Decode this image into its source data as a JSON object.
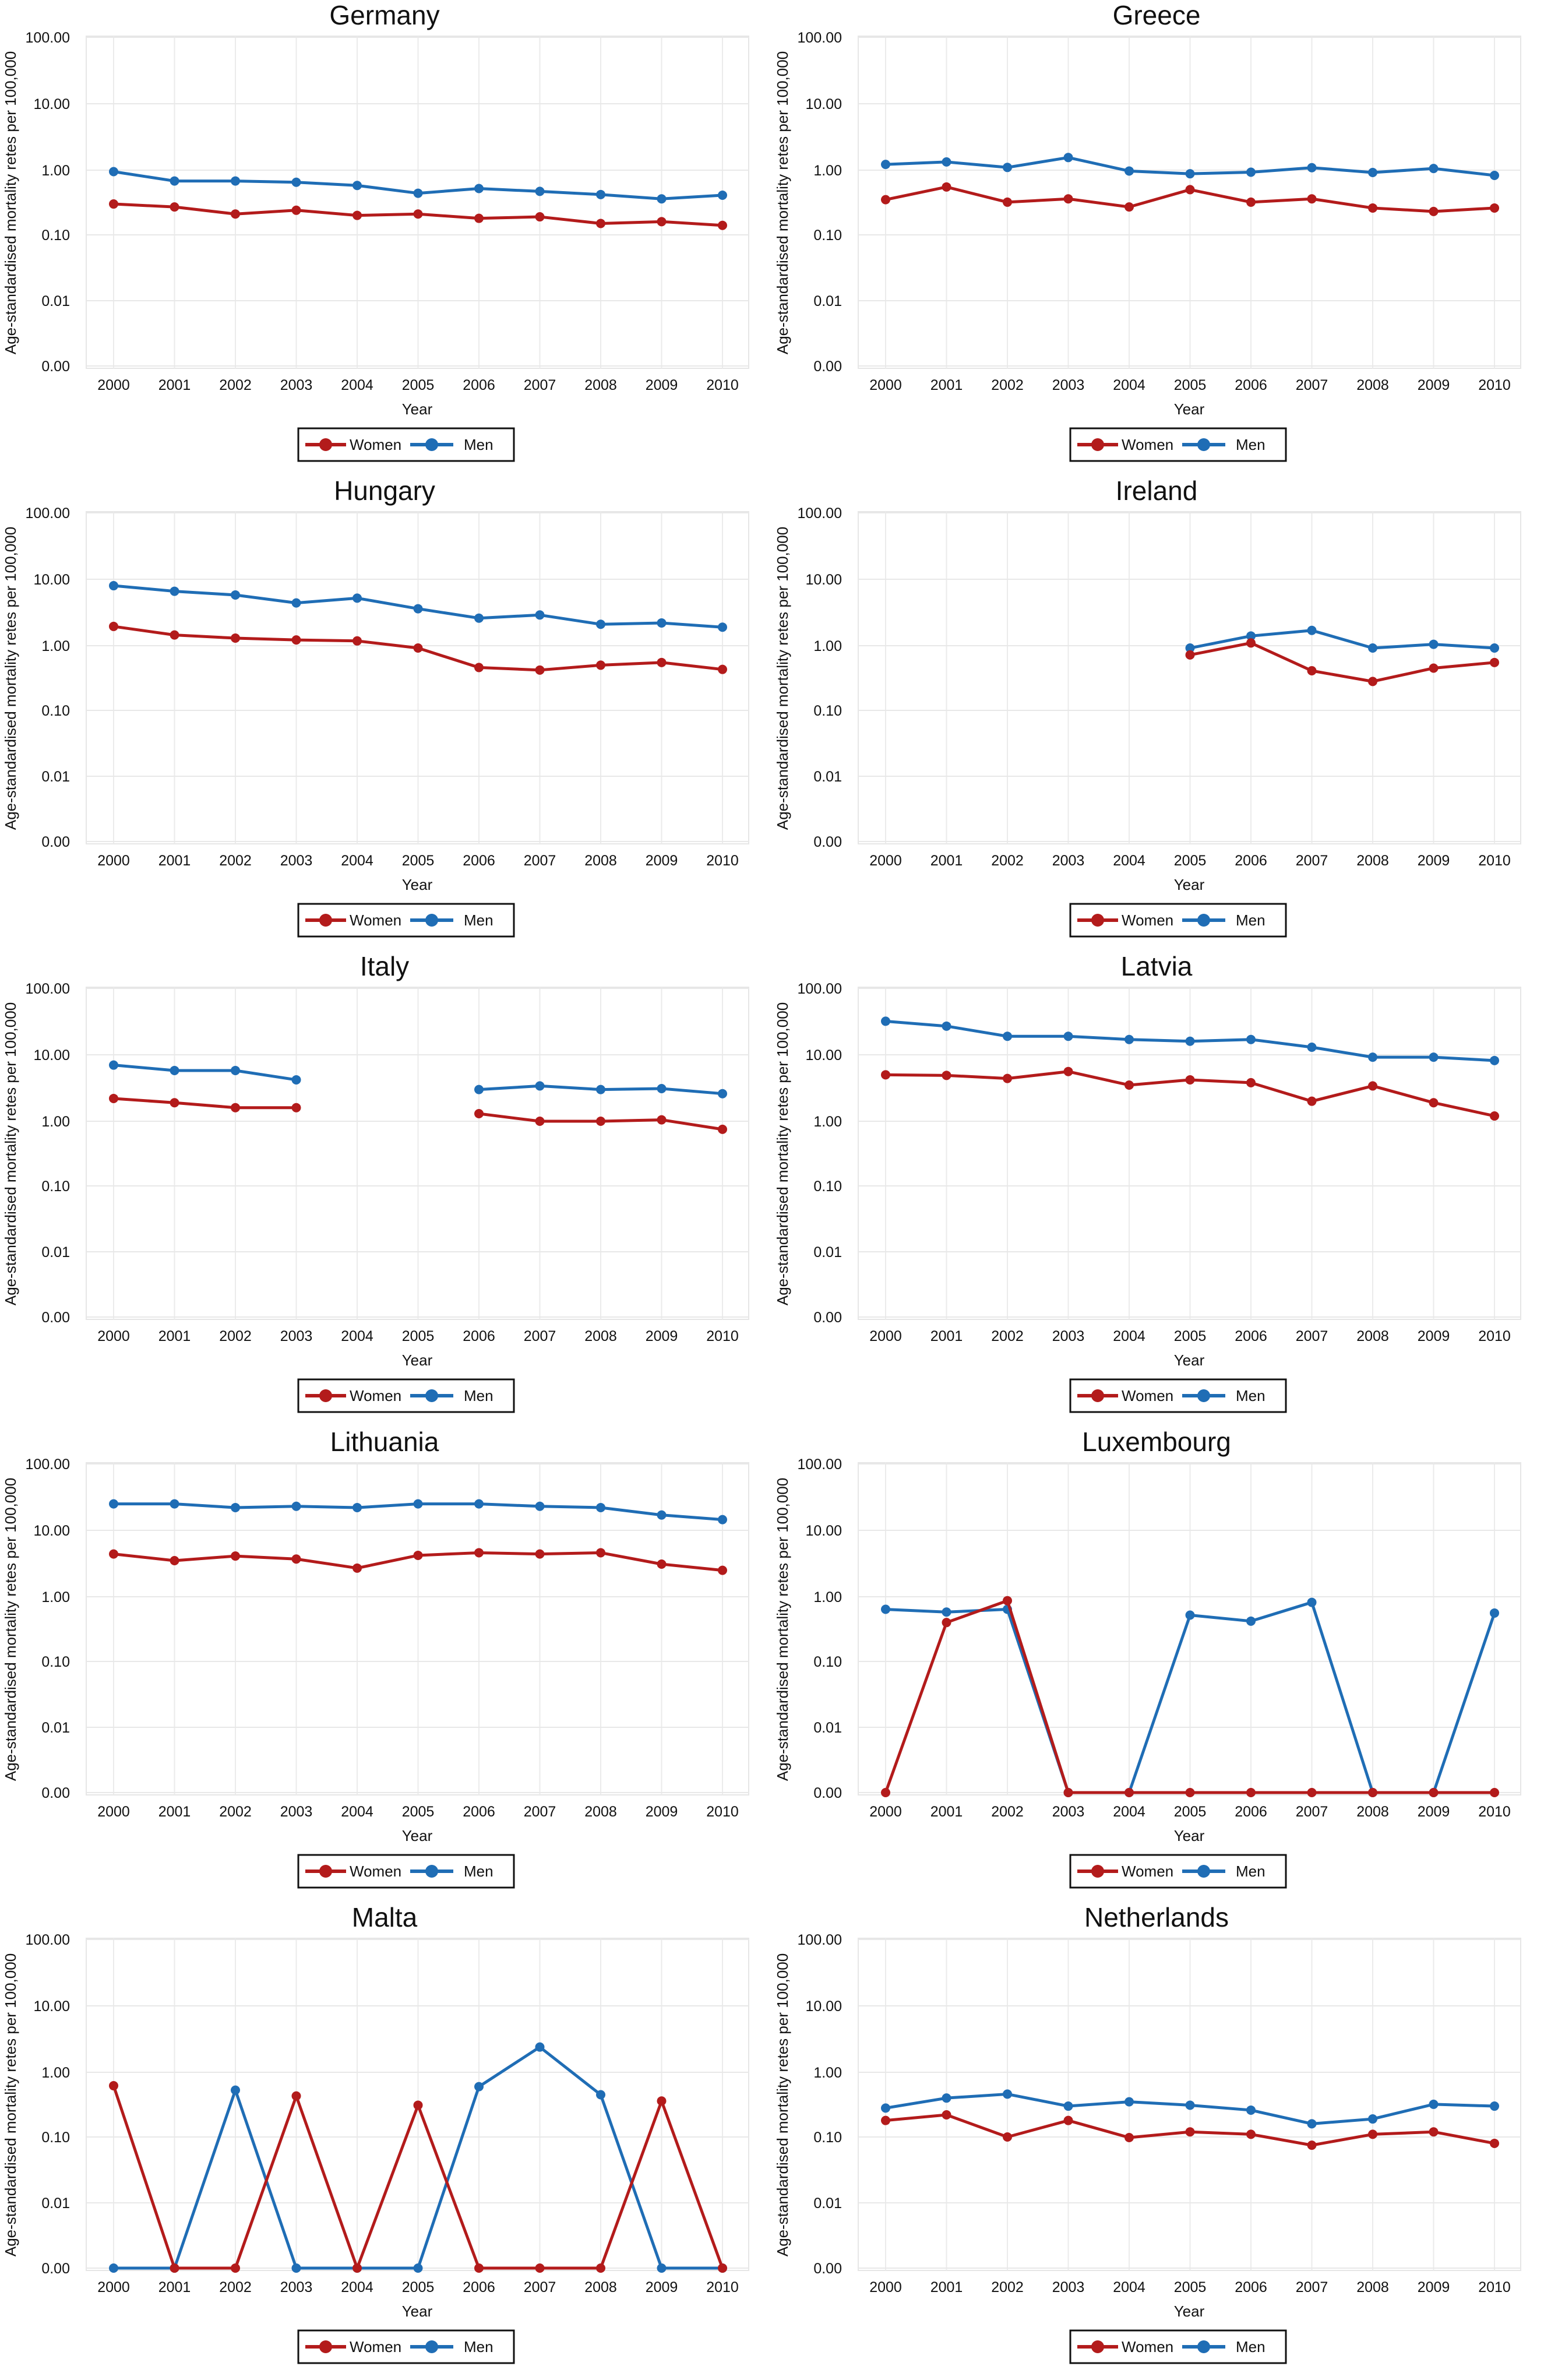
{
  "figure": {
    "ylabel": "Age-standardised mortality retes per 100,000",
    "xlabel": "Year",
    "legend": [
      {
        "name": "Women",
        "color": "#b31b1b"
      },
      {
        "name": "Men",
        "color": "#1f6db5"
      }
    ]
  },
  "chart_data": [
    {
      "type": "line",
      "title": "Germany",
      "xlabel": "Year",
      "ylabel": "Age-standardised mortality retes per 100,000",
      "y_scale": "log",
      "y_ticks": [
        "0.00",
        "0.01",
        "0.10",
        "1.00",
        "10.00",
        "100.00"
      ],
      "x": [
        "2000",
        "2001",
        "2002",
        "2003",
        "2004",
        "2005",
        "2006",
        "2007",
        "2008",
        "2009",
        "2010"
      ],
      "legend_position": "bottom",
      "grid": true,
      "series": [
        {
          "name": "Women",
          "color": "#b31b1b",
          "values": [
            0.3,
            0.27,
            0.21,
            0.24,
            0.2,
            0.21,
            0.18,
            0.19,
            0.15,
            0.16,
            0.14
          ]
        },
        {
          "name": "Men",
          "color": "#1f6db5",
          "values": [
            0.95,
            0.68,
            0.68,
            0.65,
            0.58,
            0.44,
            0.52,
            0.47,
            0.42,
            0.36,
            0.41
          ]
        }
      ]
    },
    {
      "type": "line",
      "title": "Greece",
      "xlabel": "Year",
      "ylabel": "Age-standardised mortality retes per 100,000",
      "y_scale": "log",
      "y_ticks": [
        "0.00",
        "0.01",
        "0.10",
        "1.00",
        "10.00",
        "100.00"
      ],
      "x": [
        "2000",
        "2001",
        "2002",
        "2003",
        "2004",
        "2005",
        "2006",
        "2007",
        "2008",
        "2009",
        "2010"
      ],
      "legend_position": "bottom",
      "grid": true,
      "series": [
        {
          "name": "Women",
          "color": "#b31b1b",
          "values": [
            0.35,
            0.55,
            0.32,
            0.36,
            0.27,
            0.5,
            0.32,
            0.36,
            0.26,
            0.23,
            0.26
          ]
        },
        {
          "name": "Men",
          "color": "#1f6db5",
          "values": [
            1.22,
            1.33,
            1.1,
            1.55,
            0.97,
            0.88,
            0.93,
            1.09,
            0.92,
            1.06,
            0.83
          ]
        }
      ]
    },
    {
      "type": "line",
      "title": "Hungary",
      "xlabel": "Year",
      "ylabel": "Age-standardised mortality retes per 100,000",
      "y_scale": "log",
      "y_ticks": [
        "0.00",
        "0.01",
        "0.10",
        "1.00",
        "10.00",
        "100.00"
      ],
      "x": [
        "2000",
        "2001",
        "2002",
        "2003",
        "2004",
        "2005",
        "2006",
        "2007",
        "2008",
        "2009",
        "2010"
      ],
      "legend_position": "bottom",
      "grid": true,
      "series": [
        {
          "name": "Women",
          "color": "#b31b1b",
          "values": [
            1.95,
            1.45,
            1.3,
            1.22,
            1.18,
            0.92,
            0.46,
            0.42,
            0.5,
            0.55,
            0.43
          ]
        },
        {
          "name": "Men",
          "color": "#1f6db5",
          "values": [
            8.0,
            6.6,
            5.8,
            4.4,
            5.2,
            3.6,
            2.6,
            2.9,
            2.1,
            2.2,
            1.9
          ]
        }
      ]
    },
    {
      "type": "line",
      "title": "Ireland",
      "xlabel": "Year",
      "ylabel": "Age-standardised mortality retes per 100,000",
      "y_scale": "log",
      "y_ticks": [
        "0.00",
        "0.01",
        "0.10",
        "1.00",
        "10.00",
        "100.00"
      ],
      "x": [
        "2000",
        "2001",
        "2002",
        "2003",
        "2004",
        "2005",
        "2006",
        "2007",
        "2008",
        "2009",
        "2010"
      ],
      "legend_position": "bottom",
      "grid": true,
      "series": [
        {
          "name": "Women",
          "color": "#b31b1b",
          "values": [
            null,
            null,
            null,
            null,
            null,
            0.72,
            1.1,
            0.41,
            0.28,
            0.45,
            0.55
          ]
        },
        {
          "name": "Men",
          "color": "#1f6db5",
          "values": [
            null,
            null,
            null,
            null,
            null,
            0.92,
            1.4,
            1.7,
            0.92,
            1.05,
            0.92
          ]
        }
      ]
    },
    {
      "type": "line",
      "title": "Italy",
      "xlabel": "Year",
      "ylabel": "Age-standardised mortality retes per 100,000",
      "y_scale": "log",
      "y_ticks": [
        "0.00",
        "0.01",
        "0.10",
        "1.00",
        "10.00",
        "100.00"
      ],
      "x": [
        "2000",
        "2001",
        "2002",
        "2003",
        "2004",
        "2005",
        "2006",
        "2007",
        "2008",
        "2009",
        "2010"
      ],
      "legend_position": "bottom",
      "grid": true,
      "series": [
        {
          "name": "Women",
          "color": "#b31b1b",
          "values": [
            2.2,
            1.9,
            1.6,
            1.6,
            null,
            null,
            1.3,
            1.0,
            1.0,
            1.05,
            0.75
          ]
        },
        {
          "name": "Men",
          "color": "#1f6db5",
          "values": [
            7.0,
            5.8,
            5.8,
            4.2,
            null,
            null,
            3.0,
            3.4,
            3.0,
            3.1,
            2.6
          ]
        }
      ]
    },
    {
      "type": "line",
      "title": "Latvia",
      "xlabel": "Year",
      "ylabel": "Age-standardised mortality retes per 100,000",
      "y_scale": "log",
      "y_ticks": [
        "0.00",
        "0.01",
        "0.10",
        "1.00",
        "10.00",
        "100.00"
      ],
      "x": [
        "2000",
        "2001",
        "2002",
        "2003",
        "2004",
        "2005",
        "2006",
        "2007",
        "2008",
        "2009",
        "2010"
      ],
      "legend_position": "bottom",
      "grid": true,
      "series": [
        {
          "name": "Women",
          "color": "#b31b1b",
          "values": [
            5.0,
            4.9,
            4.4,
            5.6,
            3.5,
            4.2,
            3.8,
            2.0,
            3.4,
            1.9,
            1.2
          ]
        },
        {
          "name": "Men",
          "color": "#1f6db5",
          "values": [
            32,
            27,
            19,
            19,
            17,
            16,
            17,
            13,
            9.2,
            9.2,
            8.2
          ]
        }
      ]
    },
    {
      "type": "line",
      "title": "Lithuania",
      "xlabel": "Year",
      "ylabel": "Age-standardised mortality retes per 100,000",
      "y_scale": "log",
      "y_ticks": [
        "0.00",
        "0.01",
        "0.10",
        "1.00",
        "10.00",
        "100.00"
      ],
      "x": [
        "2000",
        "2001",
        "2002",
        "2003",
        "2004",
        "2005",
        "2006",
        "2007",
        "2008",
        "2009",
        "2010"
      ],
      "legend_position": "bottom",
      "grid": true,
      "series": [
        {
          "name": "Women",
          "color": "#b31b1b",
          "values": [
            4.4,
            3.5,
            4.1,
            3.7,
            2.7,
            4.2,
            4.6,
            4.4,
            4.6,
            3.1,
            2.5
          ]
        },
        {
          "name": "Men",
          "color": "#1f6db5",
          "values": [
            25,
            25,
            22,
            23,
            22,
            25,
            25,
            23,
            22,
            17,
            14.5
          ]
        }
      ]
    },
    {
      "type": "line",
      "title": "Luxembourg",
      "xlabel": "Year",
      "ylabel": "Age-standardised mortality retes per 100,000",
      "y_scale": "log",
      "y_ticks": [
        "0.00",
        "0.01",
        "0.10",
        "1.00",
        "10.00",
        "100.00"
      ],
      "x": [
        "2000",
        "2001",
        "2002",
        "2003",
        "2004",
        "2005",
        "2006",
        "2007",
        "2008",
        "2009",
        "2010"
      ],
      "legend_position": "bottom",
      "grid": true,
      "series": [
        {
          "name": "Women",
          "color": "#b31b1b",
          "values": [
            0,
            0.4,
            0.87,
            0,
            0,
            0,
            0,
            0,
            0,
            0,
            0
          ]
        },
        {
          "name": "Men",
          "color": "#1f6db5",
          "values": [
            0.64,
            0.58,
            0.64,
            0,
            0,
            0.52,
            0.42,
            0.82,
            0,
            0,
            0.56
          ]
        }
      ]
    },
    {
      "type": "line",
      "title": "Malta",
      "xlabel": "Year",
      "ylabel": "Age-standardised mortality retes per 100,000",
      "y_scale": "log",
      "y_ticks": [
        "0.00",
        "0.01",
        "0.10",
        "1.00",
        "10.00",
        "100.00"
      ],
      "x": [
        "2000",
        "2001",
        "2002",
        "2003",
        "2004",
        "2005",
        "2006",
        "2007",
        "2008",
        "2009",
        "2010"
      ],
      "legend_position": "bottom",
      "grid": true,
      "series": [
        {
          "name": "Women",
          "color": "#b31b1b",
          "values": [
            0.62,
            0,
            0,
            0.43,
            0,
            0.31,
            0,
            0,
            0,
            0.36,
            0
          ]
        },
        {
          "name": "Men",
          "color": "#1f6db5",
          "values": [
            0,
            0,
            0.53,
            0,
            0,
            0,
            0.6,
            2.4,
            0.45,
            0,
            0
          ]
        }
      ]
    },
    {
      "type": "line",
      "title": "Netherlands",
      "xlabel": "Year",
      "ylabel": "Age-standardised mortality retes per 100,000",
      "y_scale": "log",
      "y_ticks": [
        "0.00",
        "0.01",
        "0.10",
        "1.00",
        "10.00",
        "100.00"
      ],
      "x": [
        "2000",
        "2001",
        "2002",
        "2003",
        "2004",
        "2005",
        "2006",
        "2007",
        "2008",
        "2009",
        "2010"
      ],
      "legend_position": "bottom",
      "grid": true,
      "series": [
        {
          "name": "Women",
          "color": "#b31b1b",
          "values": [
            0.18,
            0.22,
            0.1,
            0.18,
            0.098,
            0.12,
            0.11,
            0.075,
            0.11,
            0.12,
            0.08
          ]
        },
        {
          "name": "Men",
          "color": "#1f6db5",
          "values": [
            0.28,
            0.4,
            0.46,
            0.3,
            0.35,
            0.31,
            0.26,
            0.16,
            0.19,
            0.32,
            0.3
          ]
        }
      ]
    }
  ]
}
